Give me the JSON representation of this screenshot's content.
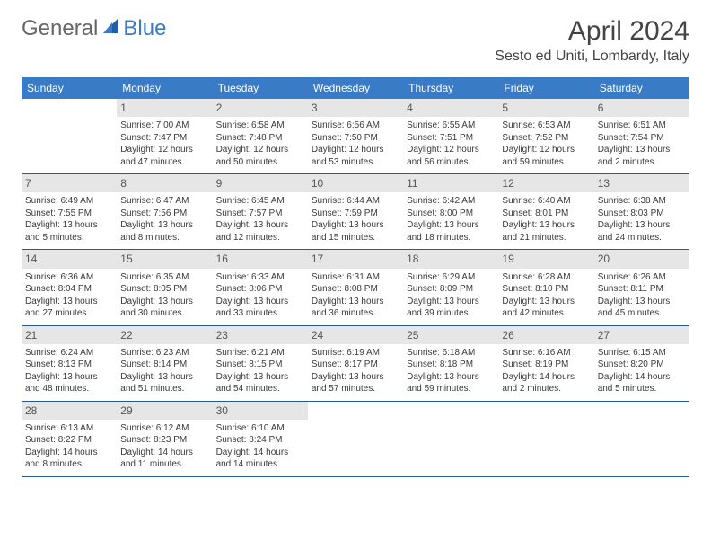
{
  "logo": {
    "text1": "General",
    "text2": "Blue"
  },
  "title": "April 2024",
  "location": "Sesto ed Uniti, Lombardy, Italy",
  "colors": {
    "header_bg": "#3a7bc8",
    "header_text": "#ffffff",
    "daynum_bg": "#e6e6e6",
    "row_border": "#2a5a8f",
    "body_text": "#3a3a3a",
    "logo_gray": "#666666",
    "logo_blue": "#3a7bc8"
  },
  "typography": {
    "title_fontsize": 30,
    "location_fontsize": 16,
    "weekday_fontsize": 12,
    "daynum_fontsize": 12,
    "cell_fontsize": 10
  },
  "weekdays": [
    "Sunday",
    "Monday",
    "Tuesday",
    "Wednesday",
    "Thursday",
    "Friday",
    "Saturday"
  ],
  "weeks": [
    [
      {
        "day": "",
        "sunrise": "",
        "sunset": "",
        "daylight1": "",
        "daylight2": ""
      },
      {
        "day": "1",
        "sunrise": "Sunrise: 7:00 AM",
        "sunset": "Sunset: 7:47 PM",
        "daylight1": "Daylight: 12 hours",
        "daylight2": "and 47 minutes."
      },
      {
        "day": "2",
        "sunrise": "Sunrise: 6:58 AM",
        "sunset": "Sunset: 7:48 PM",
        "daylight1": "Daylight: 12 hours",
        "daylight2": "and 50 minutes."
      },
      {
        "day": "3",
        "sunrise": "Sunrise: 6:56 AM",
        "sunset": "Sunset: 7:50 PM",
        "daylight1": "Daylight: 12 hours",
        "daylight2": "and 53 minutes."
      },
      {
        "day": "4",
        "sunrise": "Sunrise: 6:55 AM",
        "sunset": "Sunset: 7:51 PM",
        "daylight1": "Daylight: 12 hours",
        "daylight2": "and 56 minutes."
      },
      {
        "day": "5",
        "sunrise": "Sunrise: 6:53 AM",
        "sunset": "Sunset: 7:52 PM",
        "daylight1": "Daylight: 12 hours",
        "daylight2": "and 59 minutes."
      },
      {
        "day": "6",
        "sunrise": "Sunrise: 6:51 AM",
        "sunset": "Sunset: 7:54 PM",
        "daylight1": "Daylight: 13 hours",
        "daylight2": "and 2 minutes."
      }
    ],
    [
      {
        "day": "7",
        "sunrise": "Sunrise: 6:49 AM",
        "sunset": "Sunset: 7:55 PM",
        "daylight1": "Daylight: 13 hours",
        "daylight2": "and 5 minutes."
      },
      {
        "day": "8",
        "sunrise": "Sunrise: 6:47 AM",
        "sunset": "Sunset: 7:56 PM",
        "daylight1": "Daylight: 13 hours",
        "daylight2": "and 8 minutes."
      },
      {
        "day": "9",
        "sunrise": "Sunrise: 6:45 AM",
        "sunset": "Sunset: 7:57 PM",
        "daylight1": "Daylight: 13 hours",
        "daylight2": "and 12 minutes."
      },
      {
        "day": "10",
        "sunrise": "Sunrise: 6:44 AM",
        "sunset": "Sunset: 7:59 PM",
        "daylight1": "Daylight: 13 hours",
        "daylight2": "and 15 minutes."
      },
      {
        "day": "11",
        "sunrise": "Sunrise: 6:42 AM",
        "sunset": "Sunset: 8:00 PM",
        "daylight1": "Daylight: 13 hours",
        "daylight2": "and 18 minutes."
      },
      {
        "day": "12",
        "sunrise": "Sunrise: 6:40 AM",
        "sunset": "Sunset: 8:01 PM",
        "daylight1": "Daylight: 13 hours",
        "daylight2": "and 21 minutes."
      },
      {
        "day": "13",
        "sunrise": "Sunrise: 6:38 AM",
        "sunset": "Sunset: 8:03 PM",
        "daylight1": "Daylight: 13 hours",
        "daylight2": "and 24 minutes."
      }
    ],
    [
      {
        "day": "14",
        "sunrise": "Sunrise: 6:36 AM",
        "sunset": "Sunset: 8:04 PM",
        "daylight1": "Daylight: 13 hours",
        "daylight2": "and 27 minutes."
      },
      {
        "day": "15",
        "sunrise": "Sunrise: 6:35 AM",
        "sunset": "Sunset: 8:05 PM",
        "daylight1": "Daylight: 13 hours",
        "daylight2": "and 30 minutes."
      },
      {
        "day": "16",
        "sunrise": "Sunrise: 6:33 AM",
        "sunset": "Sunset: 8:06 PM",
        "daylight1": "Daylight: 13 hours",
        "daylight2": "and 33 minutes."
      },
      {
        "day": "17",
        "sunrise": "Sunrise: 6:31 AM",
        "sunset": "Sunset: 8:08 PM",
        "daylight1": "Daylight: 13 hours",
        "daylight2": "and 36 minutes."
      },
      {
        "day": "18",
        "sunrise": "Sunrise: 6:29 AM",
        "sunset": "Sunset: 8:09 PM",
        "daylight1": "Daylight: 13 hours",
        "daylight2": "and 39 minutes."
      },
      {
        "day": "19",
        "sunrise": "Sunrise: 6:28 AM",
        "sunset": "Sunset: 8:10 PM",
        "daylight1": "Daylight: 13 hours",
        "daylight2": "and 42 minutes."
      },
      {
        "day": "20",
        "sunrise": "Sunrise: 6:26 AM",
        "sunset": "Sunset: 8:11 PM",
        "daylight1": "Daylight: 13 hours",
        "daylight2": "and 45 minutes."
      }
    ],
    [
      {
        "day": "21",
        "sunrise": "Sunrise: 6:24 AM",
        "sunset": "Sunset: 8:13 PM",
        "daylight1": "Daylight: 13 hours",
        "daylight2": "and 48 minutes."
      },
      {
        "day": "22",
        "sunrise": "Sunrise: 6:23 AM",
        "sunset": "Sunset: 8:14 PM",
        "daylight1": "Daylight: 13 hours",
        "daylight2": "and 51 minutes."
      },
      {
        "day": "23",
        "sunrise": "Sunrise: 6:21 AM",
        "sunset": "Sunset: 8:15 PM",
        "daylight1": "Daylight: 13 hours",
        "daylight2": "and 54 minutes."
      },
      {
        "day": "24",
        "sunrise": "Sunrise: 6:19 AM",
        "sunset": "Sunset: 8:17 PM",
        "daylight1": "Daylight: 13 hours",
        "daylight2": "and 57 minutes."
      },
      {
        "day": "25",
        "sunrise": "Sunrise: 6:18 AM",
        "sunset": "Sunset: 8:18 PM",
        "daylight1": "Daylight: 13 hours",
        "daylight2": "and 59 minutes."
      },
      {
        "day": "26",
        "sunrise": "Sunrise: 6:16 AM",
        "sunset": "Sunset: 8:19 PM",
        "daylight1": "Daylight: 14 hours",
        "daylight2": "and 2 minutes."
      },
      {
        "day": "27",
        "sunrise": "Sunrise: 6:15 AM",
        "sunset": "Sunset: 8:20 PM",
        "daylight1": "Daylight: 14 hours",
        "daylight2": "and 5 minutes."
      }
    ],
    [
      {
        "day": "28",
        "sunrise": "Sunrise: 6:13 AM",
        "sunset": "Sunset: 8:22 PM",
        "daylight1": "Daylight: 14 hours",
        "daylight2": "and 8 minutes."
      },
      {
        "day": "29",
        "sunrise": "Sunrise: 6:12 AM",
        "sunset": "Sunset: 8:23 PM",
        "daylight1": "Daylight: 14 hours",
        "daylight2": "and 11 minutes."
      },
      {
        "day": "30",
        "sunrise": "Sunrise: 6:10 AM",
        "sunset": "Sunset: 8:24 PM",
        "daylight1": "Daylight: 14 hours",
        "daylight2": "and 14 minutes."
      },
      {
        "day": "",
        "sunrise": "",
        "sunset": "",
        "daylight1": "",
        "daylight2": ""
      },
      {
        "day": "",
        "sunrise": "",
        "sunset": "",
        "daylight1": "",
        "daylight2": ""
      },
      {
        "day": "",
        "sunrise": "",
        "sunset": "",
        "daylight1": "",
        "daylight2": ""
      },
      {
        "day": "",
        "sunrise": "",
        "sunset": "",
        "daylight1": "",
        "daylight2": ""
      }
    ]
  ]
}
